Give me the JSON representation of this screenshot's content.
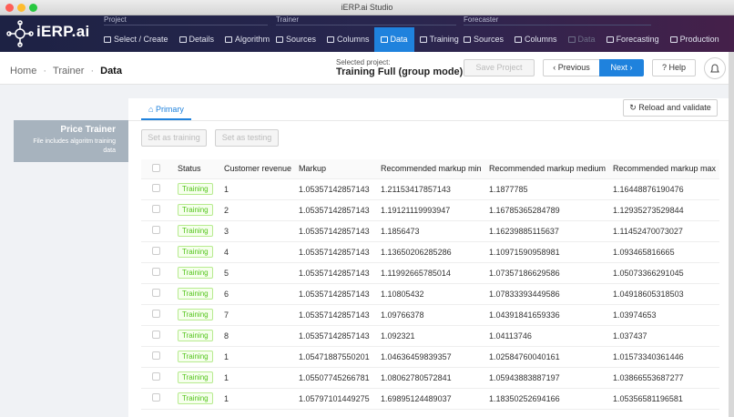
{
  "window_title": "iERP.ai Studio",
  "nav": {
    "logo": "iERP.ai",
    "groups": [
      {
        "label": "Project",
        "items": [
          "Select / Create",
          "Details",
          "Algorithm"
        ]
      },
      {
        "label": "Trainer",
        "items": [
          "Sources",
          "Columns",
          "Data",
          "Training"
        ]
      },
      {
        "label": "Forecaster",
        "items": [
          "Sources",
          "Columns",
          "Data",
          "Forecasting",
          "Production"
        ]
      }
    ]
  },
  "header": {
    "breadcrumb": [
      "Home",
      "Trainer",
      "Data"
    ],
    "selected_project_label": "Selected project:",
    "selected_project": "Training Full (group mode)",
    "buttons": {
      "save": "Save Project",
      "previous": "Previous",
      "next": "Next",
      "help": "Help"
    }
  },
  "sidebar": {
    "title": "Price Trainer",
    "description": "File includes algoritm training data"
  },
  "tabs": [
    "Primary"
  ],
  "actions": {
    "reload": "Reload and validate",
    "set_training": "Set as training",
    "set_testing": "Set as testing"
  },
  "table": {
    "columns": [
      "Status",
      "Customer revenue",
      "Markup",
      "Recommended markup min",
      "Recommended markup medium",
      "Recommended markup max"
    ],
    "rows": [
      [
        "Training",
        "1",
        "1.05357142857143",
        "1.21153417857143",
        "1.1877785",
        "1.16448876190476"
      ],
      [
        "Training",
        "2",
        "1.05357142857143",
        "1.19121119993947",
        "1.16785365284789",
        "1.12935273529844"
      ],
      [
        "Training",
        "3",
        "1.05357142857143",
        "1.1856473",
        "1.16239885115637",
        "1.11452470073027"
      ],
      [
        "Training",
        "4",
        "1.05357142857143",
        "1.13650206285286",
        "1.10971590958981",
        "1.093465816665"
      ],
      [
        "Training",
        "5",
        "1.05357142857143",
        "1.11992665785014",
        "1.07357186629586",
        "1.05073366291045"
      ],
      [
        "Training",
        "6",
        "1.05357142857143",
        "1.10805432",
        "1.07833393449586",
        "1.04918605318503"
      ],
      [
        "Training",
        "7",
        "1.05357142857143",
        "1.09766378",
        "1.04391841659336",
        "1.03974653"
      ],
      [
        "Training",
        "8",
        "1.05357142857143",
        "1.092321",
        "1.04113746",
        "1.037437"
      ],
      [
        "Training",
        "1",
        "1.05471887550201",
        "1.04636459839357",
        "1.02584760040161",
        "1.01573340361446"
      ],
      [
        "Training",
        "1",
        "1.05507745266781",
        "1.08062780572841",
        "1.05943883887197",
        "1.03866553687277"
      ],
      [
        "Training",
        "1",
        "1.05797101449275",
        "1.69895124489037",
        "1.18350252694166",
        "1.05356581196581"
      ]
    ]
  }
}
